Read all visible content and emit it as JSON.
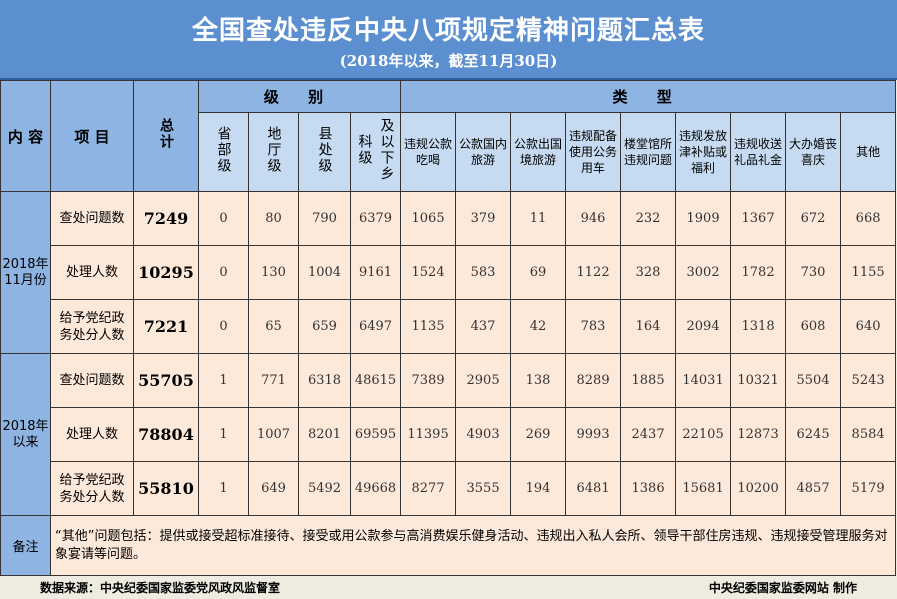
{
  "title": "全国查处违反中央八项规定精神问题汇总表",
  "subtitle": "(2018年以来，截至11月30日)",
  "headers": {
    "content": "内 容",
    "item": "项 目",
    "total": "总计",
    "level_group": "级 别",
    "type_group": "类 型",
    "levels": [
      "省部级",
      "地厅级",
      "县处级",
      "及以下乡科级"
    ],
    "types": [
      "违规公款吃喝",
      "公款国内旅游",
      "公款出国境旅游",
      "违规配备使用公务用车",
      "楼堂馆所违规问题",
      "违规发放津补贴或福利",
      "违规收送礼品礼金",
      "大办婚丧喜庆",
      "其他"
    ]
  },
  "periods": [
    {
      "label": "2018年\n11月份",
      "rows": [
        {
          "item": "查处问题数",
          "total": "7249",
          "levels": [
            "0",
            "80",
            "790",
            "6379"
          ],
          "types": [
            "1065",
            "379",
            "11",
            "946",
            "232",
            "1909",
            "1367",
            "672",
            "668"
          ]
        },
        {
          "item": "处理人数",
          "total": "10295",
          "levels": [
            "0",
            "130",
            "1004",
            "9161"
          ],
          "types": [
            "1524",
            "583",
            "69",
            "1122",
            "328",
            "3002",
            "1782",
            "730",
            "1155"
          ]
        },
        {
          "item": "给予党纪政务处分人数",
          "total": "7221",
          "levels": [
            "0",
            "65",
            "659",
            "6497"
          ],
          "types": [
            "1135",
            "437",
            "42",
            "783",
            "164",
            "2094",
            "1318",
            "608",
            "640"
          ]
        }
      ]
    },
    {
      "label": "2018年\n以来",
      "rows": [
        {
          "item": "查处问题数",
          "total": "55705",
          "levels": [
            "1",
            "771",
            "6318",
            "48615"
          ],
          "types": [
            "7389",
            "2905",
            "138",
            "8289",
            "1885",
            "14031",
            "10321",
            "5504",
            "5243"
          ]
        },
        {
          "item": "处理人数",
          "total": "78804",
          "levels": [
            "1",
            "1007",
            "8201",
            "69595"
          ],
          "types": [
            "11395",
            "4903",
            "269",
            "9993",
            "2437",
            "22105",
            "12873",
            "6245",
            "8584"
          ]
        },
        {
          "item": "给予党纪政务处分人数",
          "total": "55810",
          "levels": [
            "1",
            "649",
            "5492",
            "49668"
          ],
          "types": [
            "8277",
            "3555",
            "194",
            "6481",
            "1386",
            "15681",
            "10200",
            "4857",
            "5179"
          ]
        }
      ]
    }
  ],
  "note": {
    "label": "备注",
    "text": "“其他”问题包括：提供或接受超标准接待、接受或用公款参与高消费娱乐健身活动、违规出入私人会所、领导干部住房违规、违规接受管理服务对象宴请等问题。"
  },
  "footer": {
    "source": "数据来源：中央纪委国家监委党风政风监督室",
    "producer": "中央纪委国家监委网站 制作"
  }
}
